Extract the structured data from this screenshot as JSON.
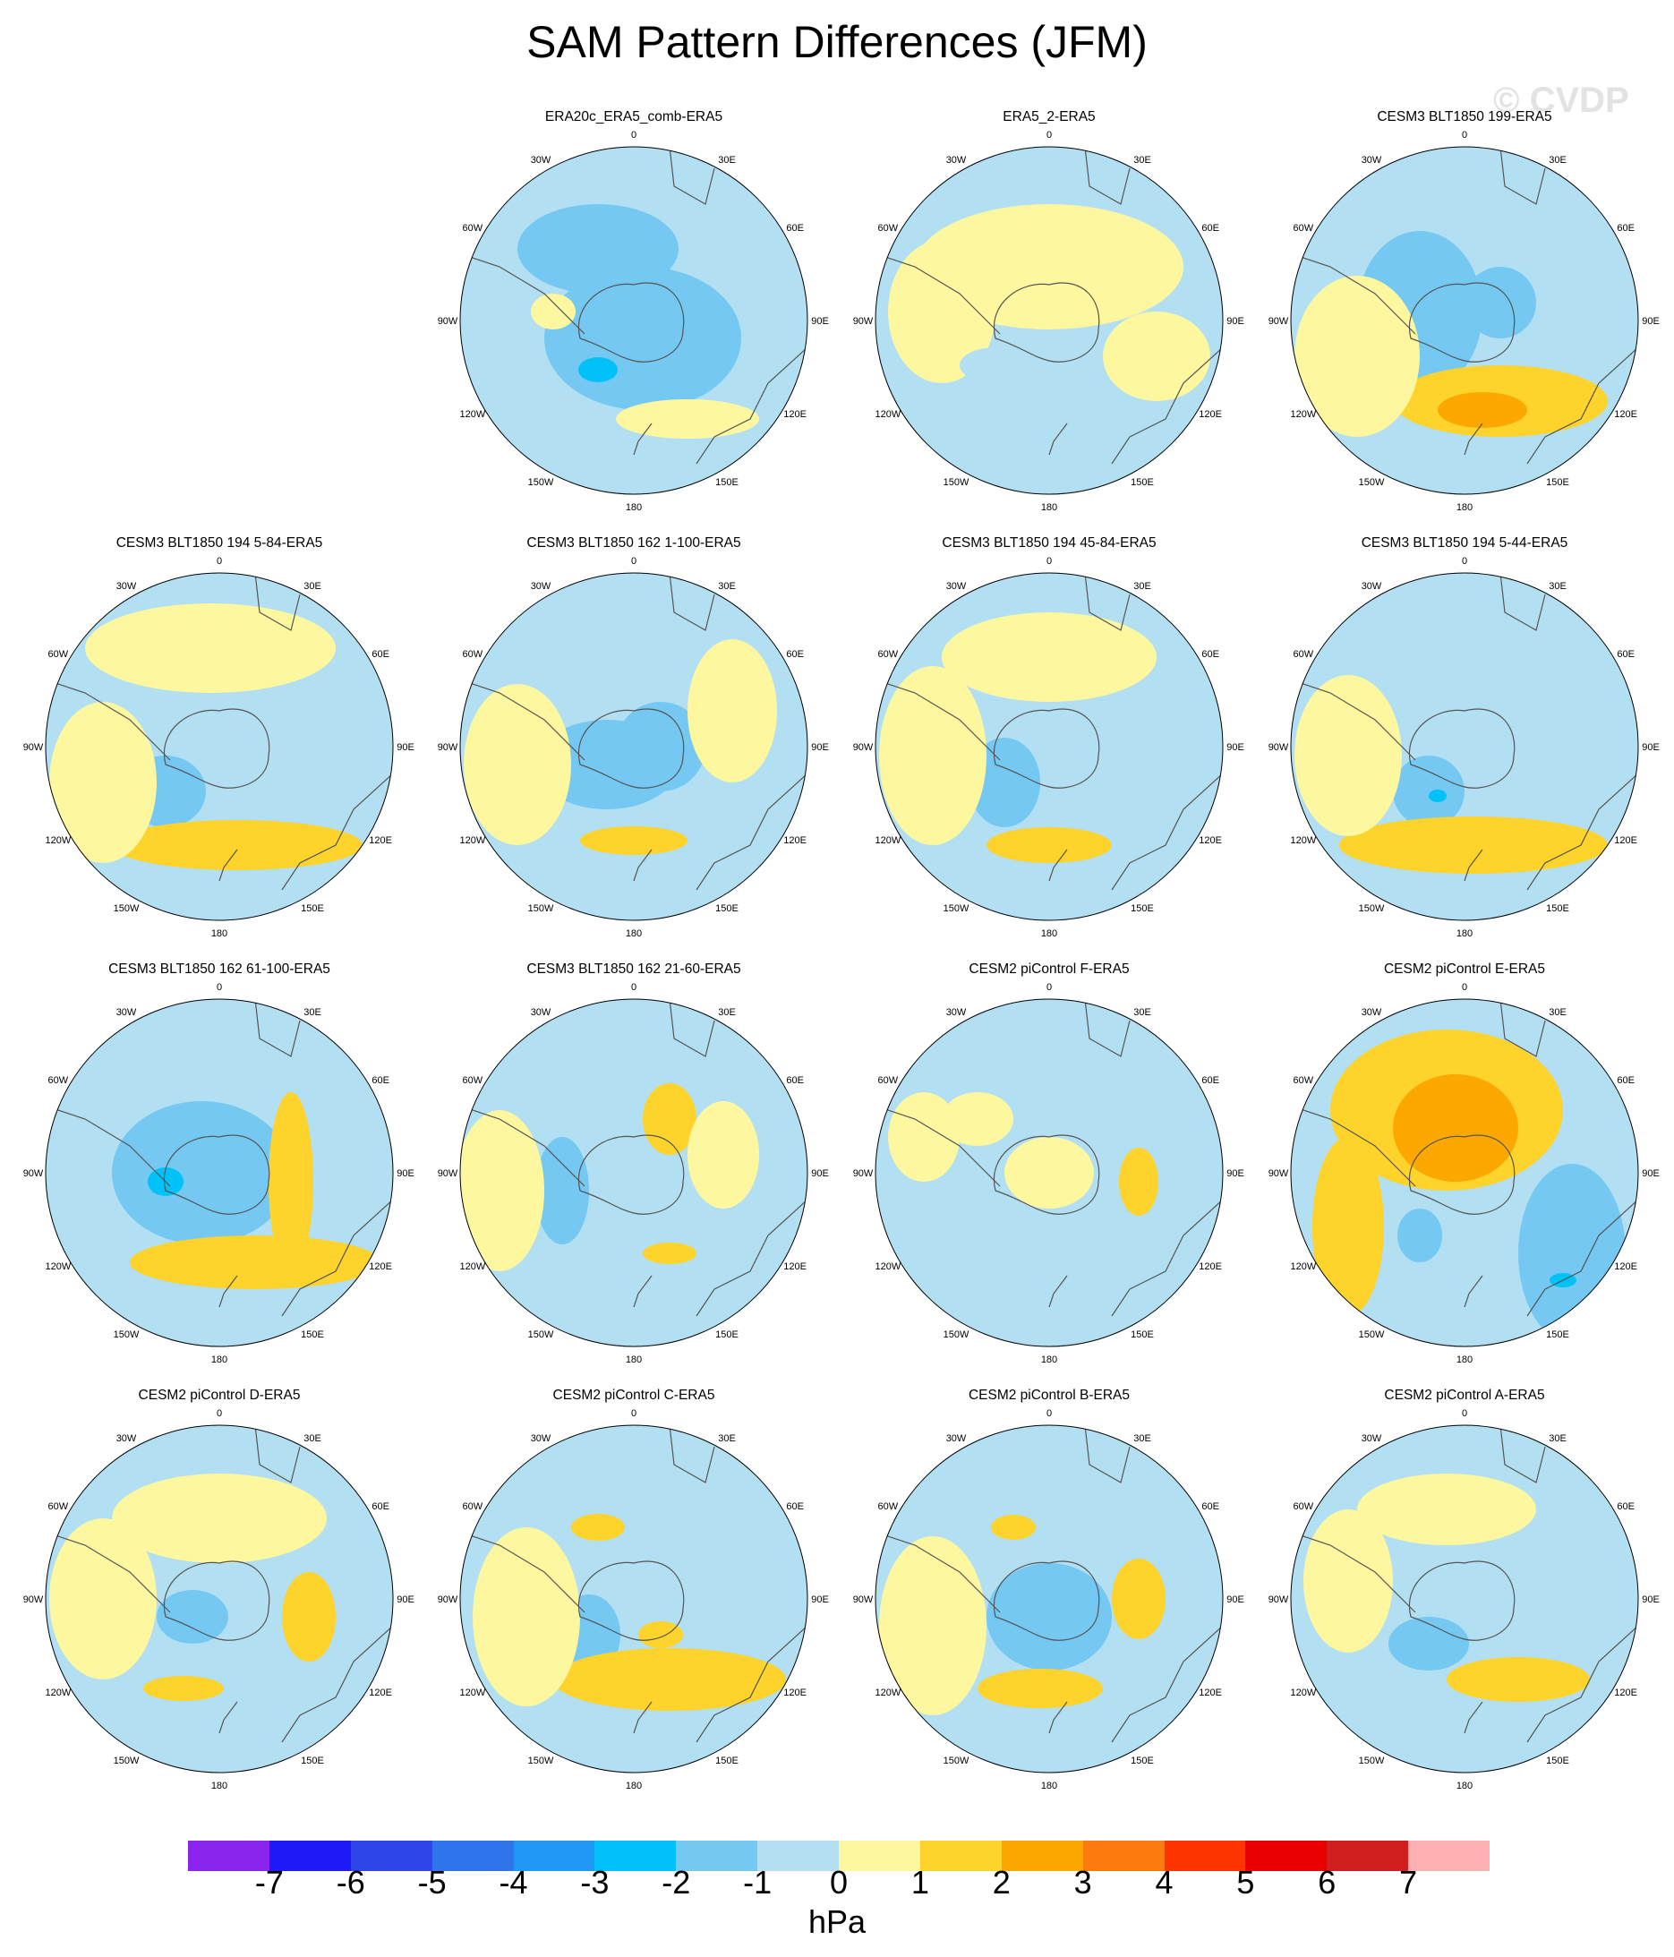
{
  "chart_data": {
    "type": "heatmap",
    "title": "SAM Pattern Differences (JFM)",
    "watermark": "© CVDP",
    "projection": "south-polar-stereographic",
    "units": "hPa",
    "lon_labels": [
      "0",
      "30E",
      "60E",
      "90E",
      "120E",
      "150E",
      "180",
      "150W",
      "120W",
      "90W",
      "60W",
      "30W"
    ],
    "colorbar": {
      "levels": [
        -7,
        -6,
        -5,
        -4,
        -3,
        -2,
        -1,
        0,
        1,
        2,
        3,
        4,
        5,
        6,
        7
      ],
      "colors": [
        "#8b25ee",
        "#1f1af7",
        "#2e45e9",
        "#2f74ea",
        "#1f98f5",
        "#00c2f8",
        "#74c8f2",
        "#b3dff3",
        "#fdf7a0",
        "#fdd32c",
        "#fda800",
        "#fd7a10",
        "#fd3400",
        "#ea0000",
        "#d01f1e",
        "#fdb0b0"
      ]
    },
    "panels": [
      {
        "row": 0,
        "col": 1,
        "title": "ERA20c_ERA5_comb-ERA5"
      },
      {
        "row": 0,
        "col": 2,
        "title": "ERA5_2-ERA5"
      },
      {
        "row": 0,
        "col": 3,
        "title": "CESM3 BLT1850 199-ERA5"
      },
      {
        "row": 1,
        "col": 0,
        "title": "CESM3 BLT1850 194 5-84-ERA5"
      },
      {
        "row": 1,
        "col": 1,
        "title": "CESM3 BLT1850 162 1-100-ERA5"
      },
      {
        "row": 1,
        "col": 2,
        "title": "CESM3 BLT1850 194 45-84-ERA5"
      },
      {
        "row": 1,
        "col": 3,
        "title": "CESM3 BLT1850 194 5-44-ERA5"
      },
      {
        "row": 2,
        "col": 0,
        "title": "CESM3 BLT1850 162 61-100-ERA5"
      },
      {
        "row": 2,
        "col": 1,
        "title": "CESM3 BLT1850 162 21-60-ERA5"
      },
      {
        "row": 2,
        "col": 2,
        "title": "CESM2 piControl F-ERA5"
      },
      {
        "row": 2,
        "col": 3,
        "title": "CESM2 piControl E-ERA5"
      },
      {
        "row": 3,
        "col": 0,
        "title": "CESM2 piControl D-ERA5"
      },
      {
        "row": 3,
        "col": 1,
        "title": "CESM2 piControl C-ERA5"
      },
      {
        "row": 3,
        "col": 2,
        "title": "CESM2 piControl B-ERA5"
      },
      {
        "row": 3,
        "col": 3,
        "title": "CESM2 piControl A-ERA5"
      }
    ]
  }
}
